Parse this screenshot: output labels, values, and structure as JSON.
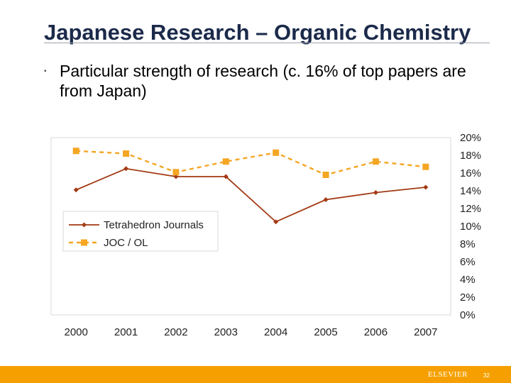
{
  "slide": {
    "title": "Japanese Research – Organic Chemistry",
    "bullet_marker": "▪",
    "bullet_text": "Particular strength of research (c. 16% of top papers are from Japan)"
  },
  "footer": {
    "brand": "ELSEVIER",
    "page_number": "32",
    "bar_color": "#f5a000"
  },
  "chart_data": {
    "type": "line",
    "categories": [
      "2000",
      "2001",
      "2002",
      "2003",
      "2004",
      "2005",
      "2006",
      "2007"
    ],
    "series": [
      {
        "name": "Tetrahedron Journals",
        "values": [
          14.1,
          16.5,
          15.6,
          15.6,
          10.5,
          13.0,
          13.8,
          14.4
        ],
        "color": "#a33a14",
        "line_style": "solid",
        "marker": "diamond"
      },
      {
        "name": "JOC / OL",
        "values": [
          18.5,
          18.2,
          16.1,
          17.3,
          18.3,
          15.8,
          17.3,
          16.7
        ],
        "color": "#f5a623",
        "line_style": "dashed",
        "marker": "square"
      }
    ],
    "y_tick_labels": [
      "0%",
      "2%",
      "4%",
      "6%",
      "8%",
      "10%",
      "12%",
      "14%",
      "16%",
      "18%",
      "20%"
    ],
    "ylim": [
      0,
      20
    ],
    "y_axis_position": "right",
    "grid": false,
    "legend_position": "middle-left"
  }
}
